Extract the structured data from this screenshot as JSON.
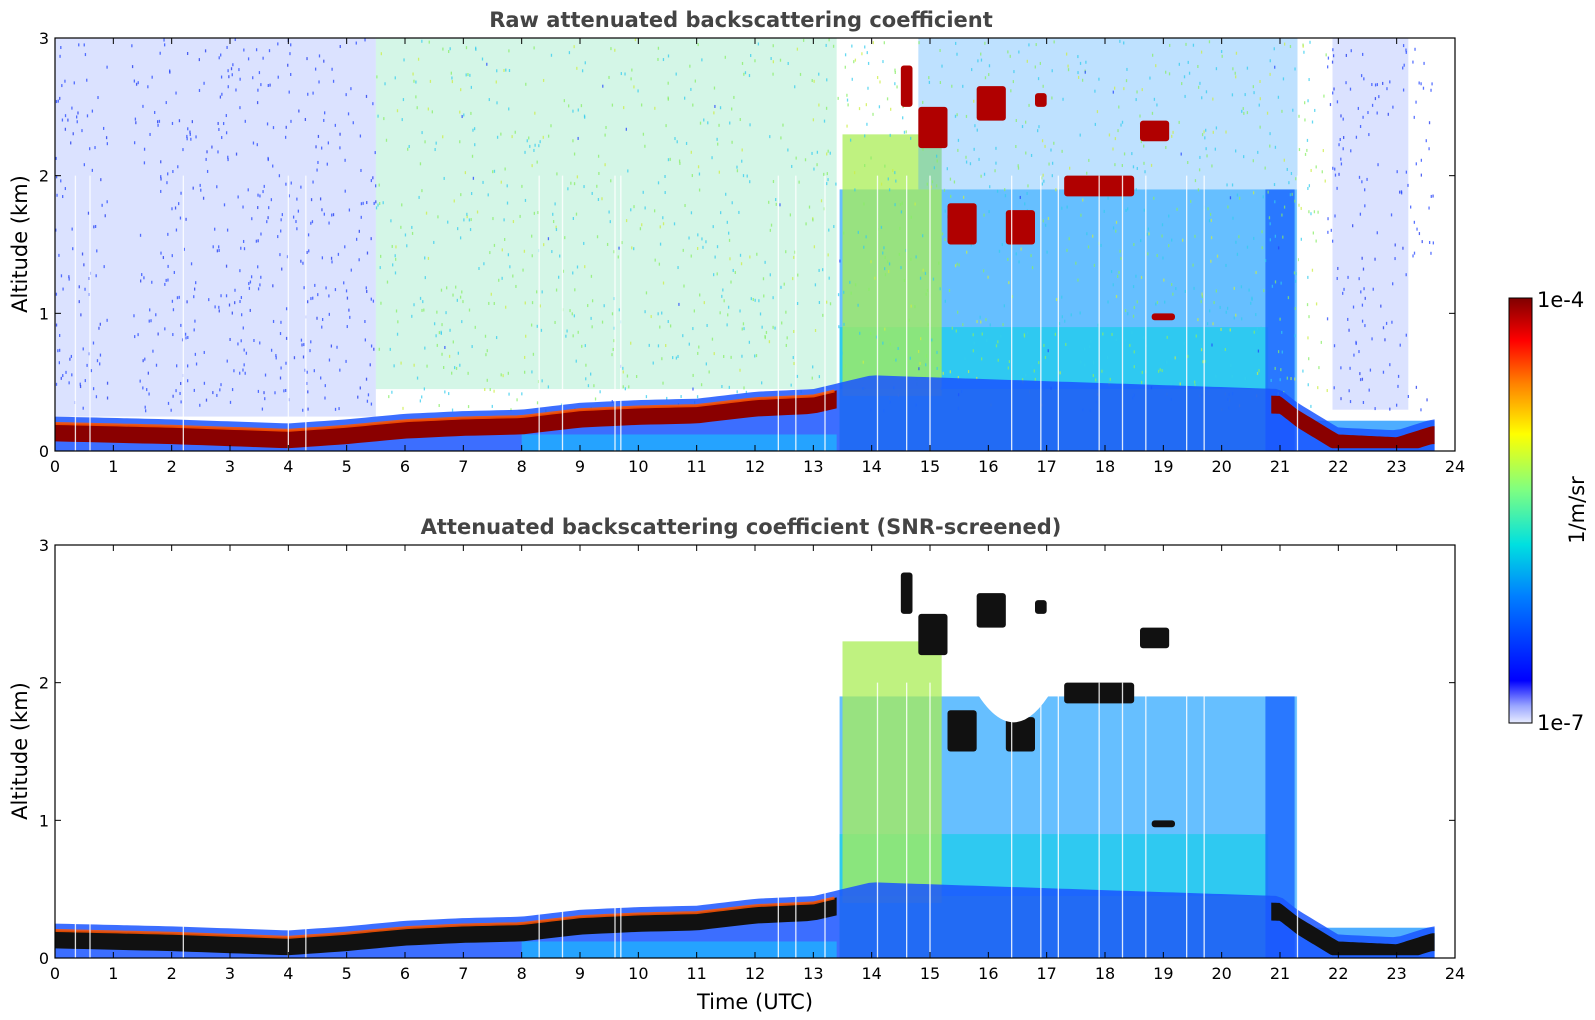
{
  "chart_data": [
    {
      "type": "heatmap",
      "title": "Raw attenuated backscattering coefficient",
      "xlabel": "",
      "ylabel": "Altitude (km)",
      "xlim": [
        0,
        24
      ],
      "ylim": [
        0,
        3
      ],
      "xticks": [
        "0",
        "1",
        "2",
        "3",
        "4",
        "5",
        "6",
        "7",
        "8",
        "9",
        "10",
        "11",
        "12",
        "13",
        "14",
        "15",
        "16",
        "17",
        "18",
        "19",
        "20",
        "21",
        "22",
        "23",
        "24"
      ],
      "yticks": [
        "0",
        "1",
        "2",
        "3"
      ],
      "grid": false,
      "boundary_layer_top_km": [
        [
          0,
          0.2
        ],
        [
          2,
          0.18
        ],
        [
          4,
          0.15
        ],
        [
          5,
          0.18
        ],
        [
          6,
          0.22
        ],
        [
          7,
          0.24
        ],
        [
          8,
          0.25
        ],
        [
          9,
          0.3
        ],
        [
          10,
          0.32
        ],
        [
          11,
          0.33
        ],
        [
          12,
          0.38
        ],
        [
          13,
          0.4
        ],
        [
          13.5,
          0.45
        ],
        [
          14,
          0.5
        ],
        [
          21,
          0.4
        ],
        [
          21.3,
          0.3
        ],
        [
          22,
          0.12
        ],
        [
          23,
          0.1
        ],
        [
          23.6,
          0.18
        ]
      ],
      "elevated_layers": [
        {
          "t0": 14.5,
          "t1": 14.7,
          "z0": 2.5,
          "z1": 2.8
        },
        {
          "t0": 14.8,
          "t1": 15.3,
          "z0": 2.2,
          "z1": 2.5
        },
        {
          "t0": 15.3,
          "t1": 15.8,
          "z0": 1.5,
          "z1": 1.8
        },
        {
          "t0": 15.8,
          "t1": 16.3,
          "z0": 2.4,
          "z1": 2.65
        },
        {
          "t0": 16.3,
          "t1": 16.8,
          "z0": 1.5,
          "z1": 1.75
        },
        {
          "t0": 16.8,
          "t1": 17.0,
          "z0": 2.5,
          "z1": 2.6
        },
        {
          "t0": 17.3,
          "t1": 18.5,
          "z0": 1.85,
          "z1": 2.0
        },
        {
          "t0": 18.6,
          "t1": 19.1,
          "z0": 2.25,
          "z1": 2.4
        },
        {
          "t0": 18.8,
          "t1": 19.2,
          "z0": 0.95,
          "z1": 1.0
        }
      ]
    },
    {
      "type": "heatmap",
      "title": "Attenuated backscattering coefficient (SNR-screened)",
      "xlabel": "Time (UTC)",
      "ylabel": "Altitude (km)",
      "xlim": [
        0,
        24
      ],
      "ylim": [
        0,
        3
      ],
      "xticks": [
        "0",
        "1",
        "2",
        "3",
        "4",
        "5",
        "6",
        "7",
        "8",
        "9",
        "10",
        "11",
        "12",
        "13",
        "14",
        "15",
        "16",
        "17",
        "18",
        "19",
        "20",
        "21",
        "22",
        "23",
        "24"
      ],
      "yticks": [
        "0",
        "1",
        "2",
        "3"
      ],
      "grid": false
    }
  ],
  "colorbar": {
    "label": "1/m/sr",
    "max_label": "1e-4",
    "min_label": "1e-7",
    "max_value": 0.0001,
    "min_value": 1e-07,
    "scale": "log",
    "colormap": [
      "#e8ecff",
      "#0000ff",
      "#0080ff",
      "#00e0e0",
      "#80ff80",
      "#ffff00",
      "#ff8000",
      "#ff0000",
      "#800000"
    ]
  }
}
